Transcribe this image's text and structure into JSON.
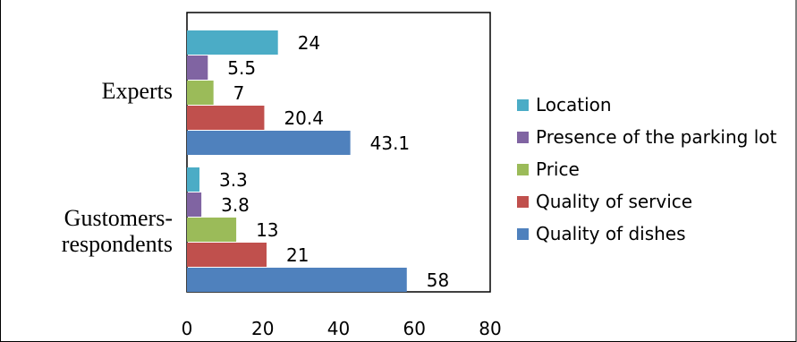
{
  "chart_data": {
    "type": "bar",
    "orientation": "horizontal",
    "title": "",
    "xlabel": "",
    "ylabel": "",
    "xlim": [
      0,
      80
    ],
    "xticks": [
      0,
      20,
      40,
      60,
      80
    ],
    "grid": false,
    "legend_position": "right",
    "categories": [
      "Experts",
      "Gustomers-respondents"
    ],
    "category_label_lines": [
      [
        "Experts"
      ],
      [
        "Gustomers-",
        "respondents"
      ]
    ],
    "series": [
      {
        "name": "Location",
        "color": "#4bacc6",
        "values": [
          24,
          3.3
        ]
      },
      {
        "name": "Presence of the parking lot",
        "color": "#8064a2",
        "values": [
          5.5,
          3.8
        ]
      },
      {
        "name": "Price",
        "color": "#9bbb59",
        "values": [
          7,
          13
        ]
      },
      {
        "name": "Quality of service",
        "color": "#c0504d",
        "values": [
          20.4,
          21
        ]
      },
      {
        "name": "Quality of dishes",
        "color": "#4f81bd",
        "values": [
          43.1,
          58
        ]
      }
    ]
  }
}
